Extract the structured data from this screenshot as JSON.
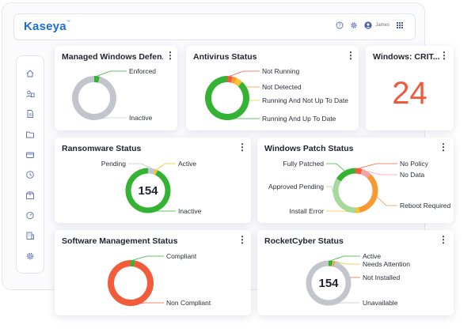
{
  "app": {
    "logo": "Kaseya",
    "user": "James"
  },
  "colors": {
    "green": "#34b233",
    "gray": "#c2c6cc",
    "red": "#f25c3b",
    "orange": "#f79a34",
    "yellow": "#f4c430",
    "lightgreen": "#a8d99c",
    "pink": "#f3a3a8"
  },
  "cards": {
    "mwd": {
      "title": "Managed Windows Defen...",
      "chart_data": {
        "type": "pie",
        "categories": [
          "Enforced",
          "Inactive"
        ],
        "values": [
          4,
          96
        ],
        "colors": [
          "#34b233",
          "#c2c6cc"
        ]
      }
    },
    "av": {
      "title": "Antivirus Status",
      "chart_data": {
        "type": "pie",
        "categories": [
          "Not Running",
          "Not Detected",
          "Running And Not Up To Date",
          "Running And Up To Date"
        ],
        "values": [
          4,
          3,
          5,
          88
        ],
        "colors": [
          "#f25c3b",
          "#f79a34",
          "#f4c430",
          "#34b233"
        ]
      }
    },
    "crit": {
      "title": "Windows: CRIT...",
      "value": "24"
    },
    "rw": {
      "title": "Ransomware Status",
      "center": "154",
      "chart_data": {
        "type": "pie",
        "categories": [
          "Pending",
          "Active",
          "Inactive"
        ],
        "values": [
          5,
          2,
          93
        ],
        "colors": [
          "#c2c6cc",
          "#f4c430",
          "#34b233"
        ]
      }
    },
    "wp": {
      "title": "Windows Patch Status",
      "chart_data": {
        "type": "pie",
        "categories": [
          "No Policy",
          "No Data",
          "Reboot Required",
          "Install Error",
          "Approved Pending",
          "Fully Patched"
        ],
        "values": [
          5,
          7,
          35,
          3,
          34,
          16
        ],
        "colors": [
          "#f25c3b",
          "#f3a3a8",
          "#f79a34",
          "#f4c430",
          "#a8d99c",
          "#34b233"
        ]
      }
    },
    "sm": {
      "title": "Software Management Status",
      "chart_data": {
        "type": "pie",
        "categories": [
          "Compliant",
          "Non Compliant"
        ],
        "values": [
          3,
          97
        ],
        "colors": [
          "#34b233",
          "#f25c3b"
        ]
      }
    },
    "rc": {
      "title": "RocketCyber Status",
      "center": "154",
      "chart_data": {
        "type": "pie",
        "categories": [
          "Active",
          "Needs Attention",
          "Not Installed",
          "Unavailable"
        ],
        "values": [
          3,
          1,
          0.5,
          95.5
        ],
        "colors": [
          "#34b233",
          "#f4c430",
          "#f25c3b",
          "#c2c6cc"
        ]
      }
    }
  }
}
